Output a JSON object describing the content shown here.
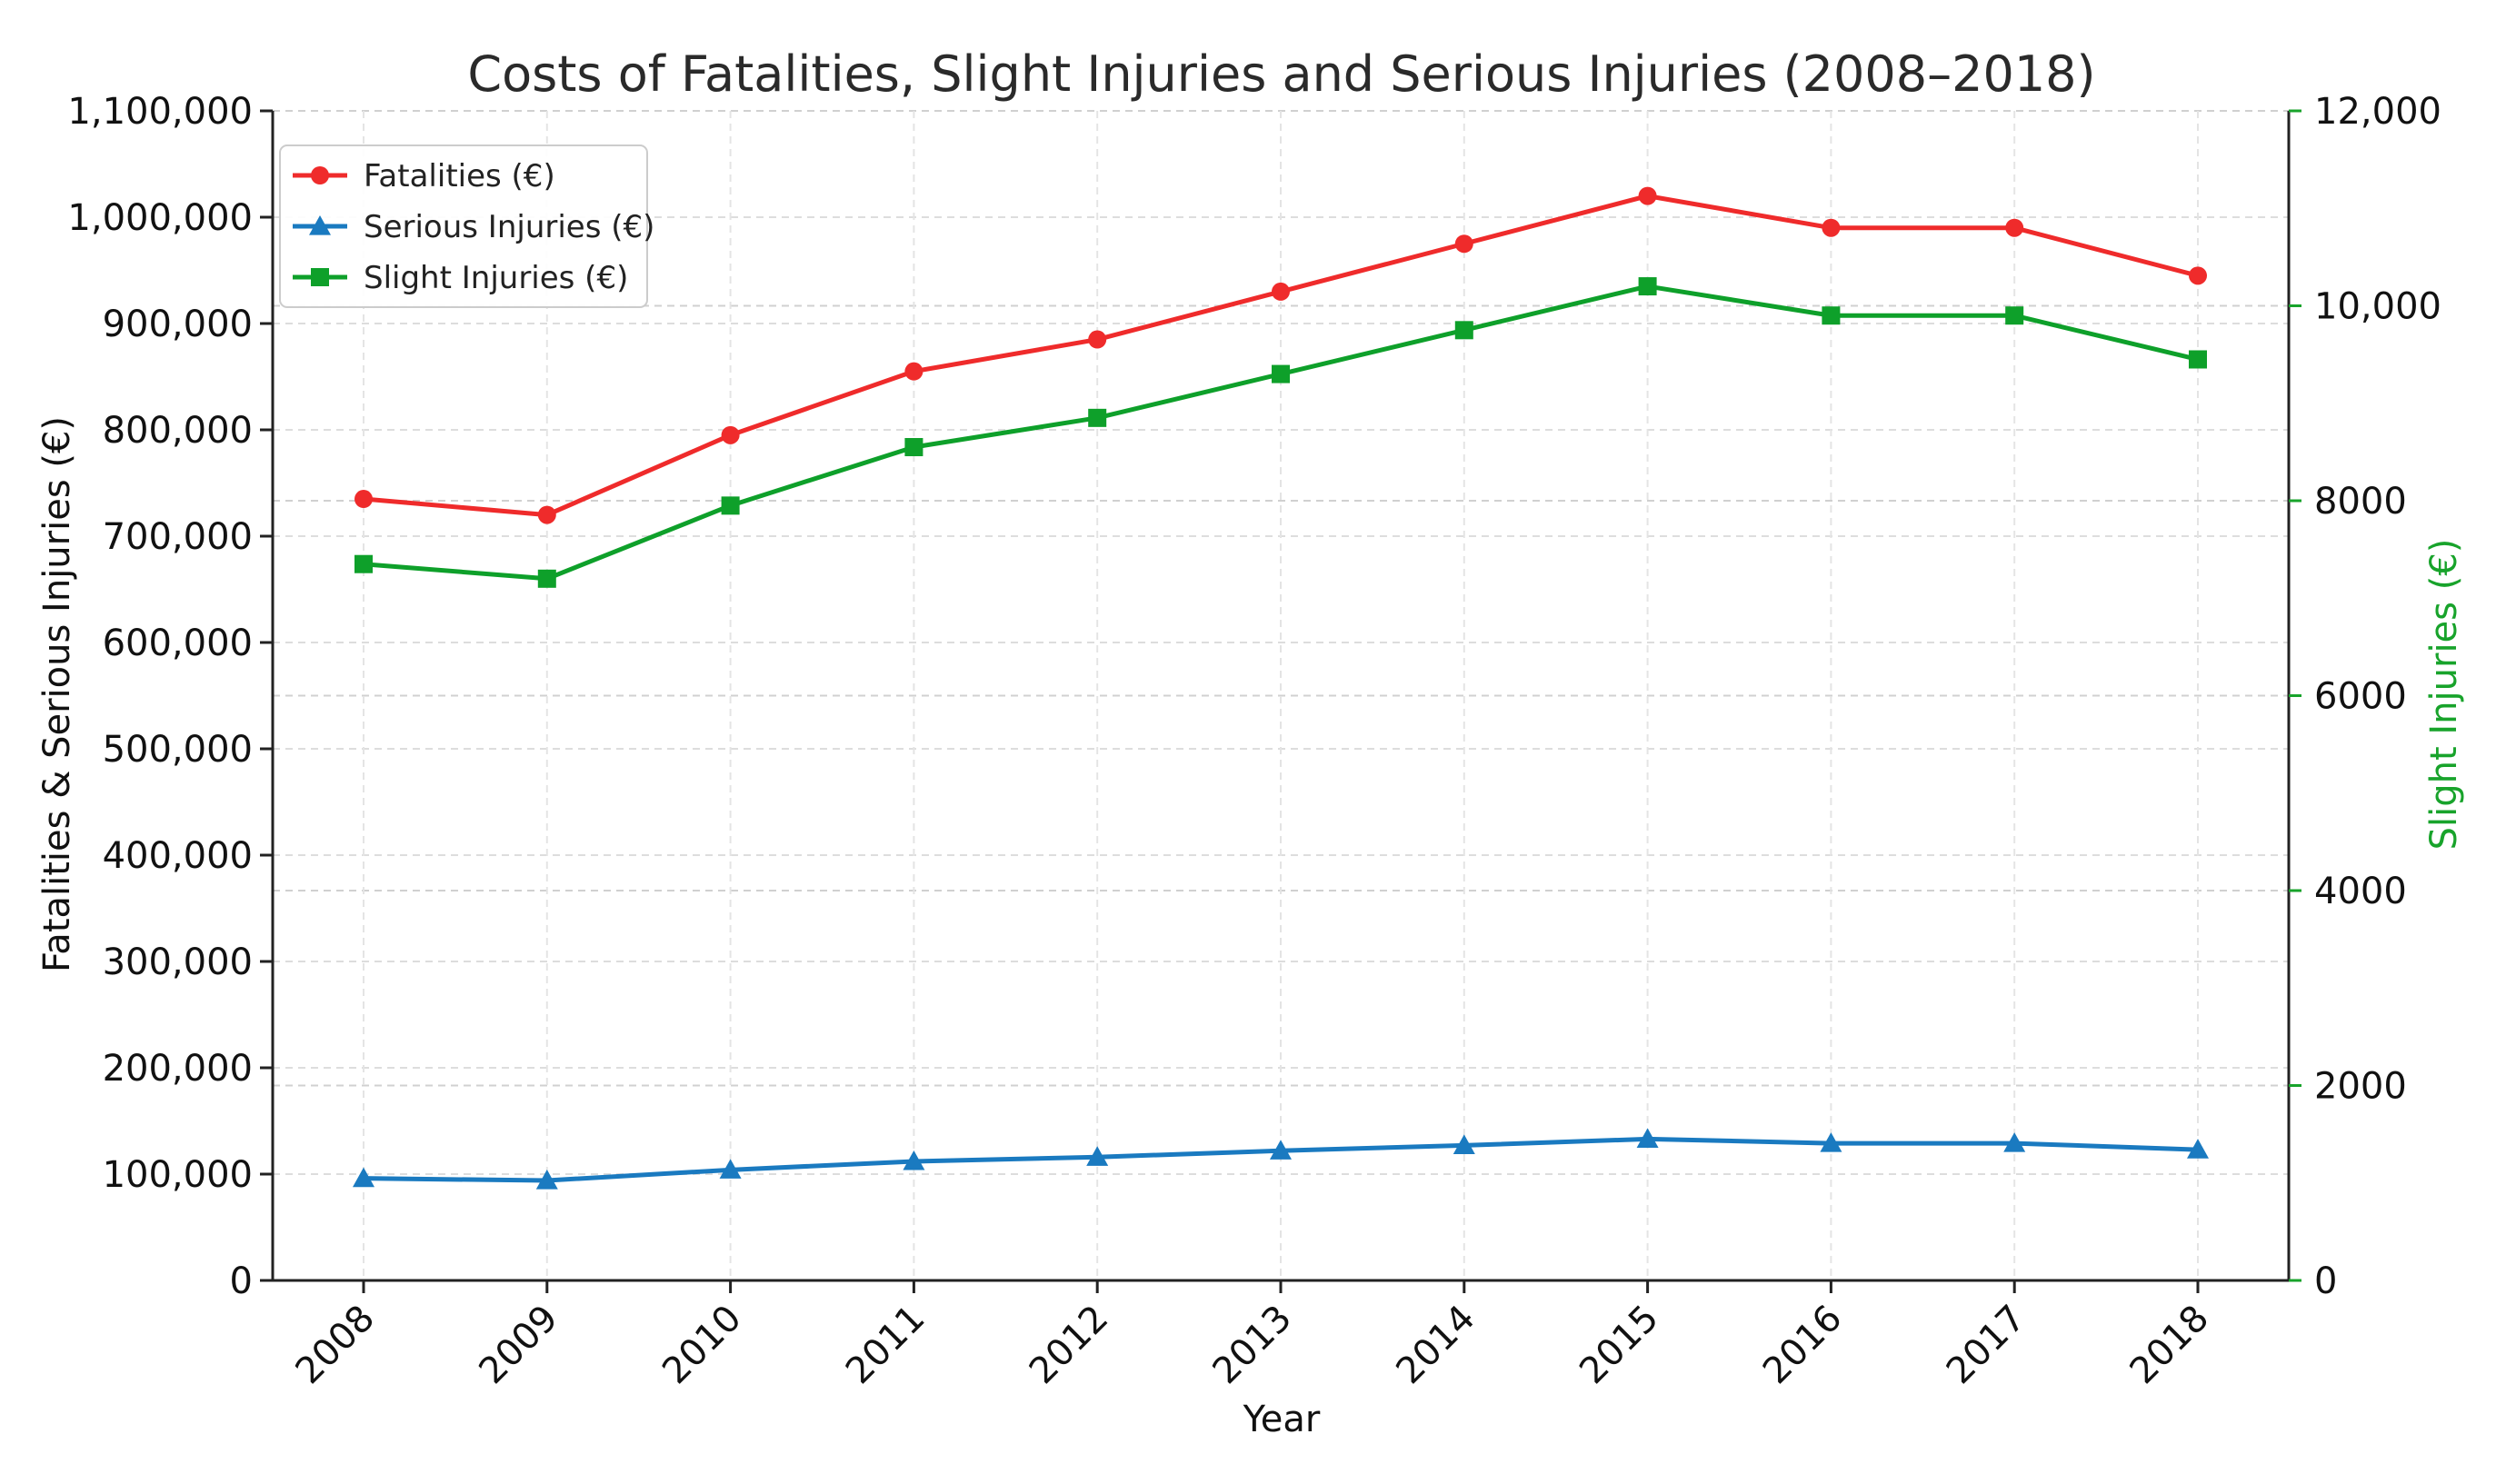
{
  "chart_data": {
    "type": "line",
    "title": "Costs of Fatalities, Slight Injuries and Serious Injuries (2008–2018)",
    "xlabel": "Year",
    "ylabel_left": "Fatalities & Serious Injuries (€)",
    "ylabel_right": "Slight Injuries (€)",
    "categories": [
      "2008",
      "2009",
      "2010",
      "2011",
      "2012",
      "2013",
      "2014",
      "2015",
      "2016",
      "2017",
      "2018"
    ],
    "ylim_left": [
      0,
      1100000
    ],
    "ylim_right": [
      0,
      12000
    ],
    "yticks_left": [
      0,
      100000,
      200000,
      300000,
      400000,
      500000,
      600000,
      700000,
      800000,
      900000,
      1000000,
      1100000
    ],
    "yticks_left_labels": [
      "0",
      "100,000",
      "200,000",
      "300,000",
      "400,000",
      "500,000",
      "600,000",
      "700,000",
      "800,000",
      "900,000",
      "1,000,000",
      "1,100,000"
    ],
    "yticks_right": [
      0,
      2000,
      4000,
      6000,
      8000,
      10000,
      12000
    ],
    "yticks_right_labels": [
      "0",
      "2000",
      "4000",
      "6000",
      "8000",
      "10,000",
      "12,000"
    ],
    "grid": true,
    "legend_position": "top-left",
    "right_axis_color": "#18a32b",
    "series": [
      {
        "name": "Fatalities (€)",
        "axis": "left",
        "color": "#ef2b2b",
        "marker": "circle",
        "values": [
          735000,
          720000,
          795000,
          855000,
          885000,
          930000,
          975000,
          1020000,
          990000,
          990000,
          945000
        ]
      },
      {
        "name": "Serious Injuries (€)",
        "axis": "left",
        "color": "#1a7ac0",
        "marker": "triangle",
        "values": [
          96000,
          94000,
          104000,
          112000,
          116000,
          122000,
          127000,
          133000,
          129000,
          129000,
          123000
        ]
      },
      {
        "name": "Slight Injuries (€)",
        "axis": "right",
        "color": "#0ea02a",
        "marker": "square",
        "values": [
          7350,
          7200,
          7950,
          8550,
          8850,
          9300,
          9750,
          10200,
          9900,
          9900,
          9450
        ]
      }
    ]
  }
}
